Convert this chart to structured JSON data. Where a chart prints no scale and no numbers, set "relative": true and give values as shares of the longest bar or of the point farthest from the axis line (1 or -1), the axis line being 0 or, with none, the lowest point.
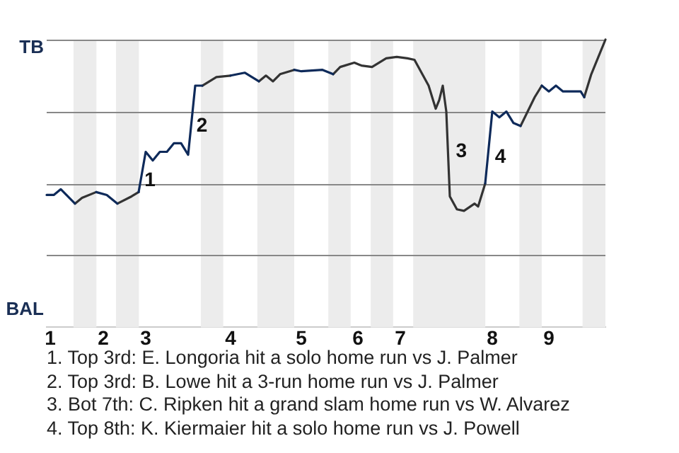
{
  "chart_data": {
    "type": "line",
    "categories": [
      null,
      "1",
      null,
      null,
      null,
      null,
      null,
      null,
      null,
      null,
      null,
      null,
      null,
      null,
      null,
      null,
      "2",
      null,
      null,
      null,
      null,
      null,
      null,
      null,
      null,
      null,
      null,
      null,
      "3",
      null,
      null,
      null,
      null,
      null,
      null,
      null,
      null,
      null,
      null,
      null,
      null,
      null,
      null,
      null,
      null,
      null,
      null,
      null,
      null,
      null,
      null,
      null,
      "4",
      null,
      null,
      null,
      null,
      null,
      null,
      null,
      null,
      null,
      null,
      null,
      null,
      null,
      null,
      null,
      null,
      null,
      null,
      null,
      "5",
      null,
      null,
      null,
      null,
      null,
      null,
      null,
      null,
      null,
      null,
      null,
      null,
      null,
      null,
      null,
      "6",
      null,
      null,
      null,
      null,
      null,
      null,
      null,
      null,
      null,
      null,
      null,
      "7",
      null,
      null,
      null,
      null,
      null,
      null,
      null,
      null,
      null,
      null,
      null,
      null,
      null,
      null,
      null,
      null,
      null,
      null,
      null,
      null,
      null,
      null,
      null,
      null,
      null,
      "8",
      null,
      null,
      null,
      null,
      null,
      null,
      null,
      null,
      null,
      null,
      null,
      null,
      null,
      null,
      null,
      "9",
      null,
      null,
      null,
      null,
      null,
      null,
      null,
      null,
      null,
      null,
      null,
      null,
      null,
      null,
      null,
      null
    ],
    "relative": true,
    "series": [
      {
        "color": "#0e2a5a",
        "values": [
          0.46,
          null,
          0.46,
          null,
          0.48,
          null,
          null,
          null,
          0.43,
          null,
          null,
          null,
          null,
          null,
          0.47,
          null,
          null,
          0.46,
          null,
          null,
          0.43,
          null,
          null,
          null,
          null,
          null,
          0.47,
          null,
          0.61,
          null,
          0.58,
          null,
          0.61,
          null,
          0.61,
          null,
          0.64,
          null,
          0.64,
          null,
          0.6,
          null,
          0.84,
          null,
          0.84,
          null,
          null,
          null,
          null,
          null,
          null,
          null,
          0.875,
          null,
          null,
          null,
          0.885,
          null,
          null,
          null,
          0.855,
          null,
          null,
          null,
          null,
          null,
          null,
          null,
          null,
          null,
          0.895,
          null,
          0.89,
          null,
          null,
          null,
          null,
          null,
          0.895,
          0.89,
          null,
          0.88,
          null,
          null,
          null,
          null,
          null,
          null,
          null,
          null,
          null,
          null,
          null,
          null,
          null,
          null,
          null,
          null,
          null,
          null,
          null,
          null,
          null,
          null,
          null,
          null,
          null,
          null,
          null,
          null,
          null,
          null,
          null,
          null,
          null,
          null,
          null,
          null,
          null,
          null,
          null,
          null,
          null,
          null,
          0.5,
          null,
          0.75,
          null,
          0.73,
          null,
          0.75,
          null,
          0.71,
          null,
          0.7,
          null,
          null,
          null,
          null,
          null,
          0.84,
          null,
          0.82,
          null,
          0.84,
          null,
          0.82,
          null,
          null,
          null,
          null,
          0.82,
          0.8,
          null,
          null,
          null,
          null,
          null,
          null
        ]
      },
      {
        "color": "#333333",
        "values": [
          null,
          null,
          null,
          null,
          null,
          null,
          null,
          null,
          0.43,
          null,
          0.45,
          null,
          null,
          null,
          0.47,
          null,
          null,
          null,
          null,
          null,
          0.43,
          null,
          null,
          null,
          0.455,
          null,
          0.47,
          null,
          null,
          null,
          null,
          null,
          null,
          null,
          null,
          null,
          null,
          null,
          null,
          null,
          null,
          null,
          null,
          null,
          0.84,
          null,
          null,
          null,
          0.87,
          null,
          null,
          null,
          0.875,
          null,
          null,
          null,
          null,
          null,
          null,
          null,
          0.855,
          null,
          0.875,
          null,
          0.855,
          null,
          0.88,
          null,
          null,
          null,
          0.895,
          null,
          null,
          null,
          null,
          null,
          null,
          null,
          null,
          null,
          null,
          0.88,
          null,
          0.905,
          null,
          null,
          null,
          0.92,
          null,
          0.91,
          null,
          null,
          0.905,
          null,
          null,
          null,
          0.935,
          null,
          null,
          0.94,
          null,
          null,
          0.935,
          null,
          0.93,
          null,
          0.885,
          null,
          0.84,
          null,
          0.76,
          0.79,
          0.84,
          0.75,
          0.455,
          null,
          0.41,
          null,
          0.405,
          null,
          null,
          0.43,
          0.42,
          null,
          0.5,
          null,
          null,
          null,
          null,
          null,
          null,
          null,
          null,
          null,
          0.7,
          null,
          null,
          null,
          0.8,
          null,
          0.84,
          null,
          null,
          null,
          null,
          null,
          null,
          null,
          null,
          null,
          null,
          null,
          0.8,
          null,
          0.88,
          null,
          0.94,
          null,
          1
        ]
      }
    ],
    "ref_lines": [
      {
        "axis": "y",
        "value": 0.25,
        "color": "#888888"
      },
      {
        "axis": "y",
        "value": 0.5,
        "color": "#888888"
      },
      {
        "axis": "y",
        "value": 0.75,
        "color": "#888888"
      },
      {
        "axis": "y",
        "value": 1,
        "color": "#888888"
      }
    ],
    "annotations": [
      "TB",
      "BAL",
      "1",
      "2",
      "3",
      "4",
      "1. Top 3rd: E. Longoria hit a solo home run vs J. Palmer",
      "2. Top 3rd: B. Lowe hit a 3-run home run vs J. Palmer",
      "3. Bot 7th: C. Ripken hit a grand slam home run vs W. Alvarez",
      "4. Top 8th: K. Kiermaier hit a solo home run vs J. Powell"
    ]
  }
}
